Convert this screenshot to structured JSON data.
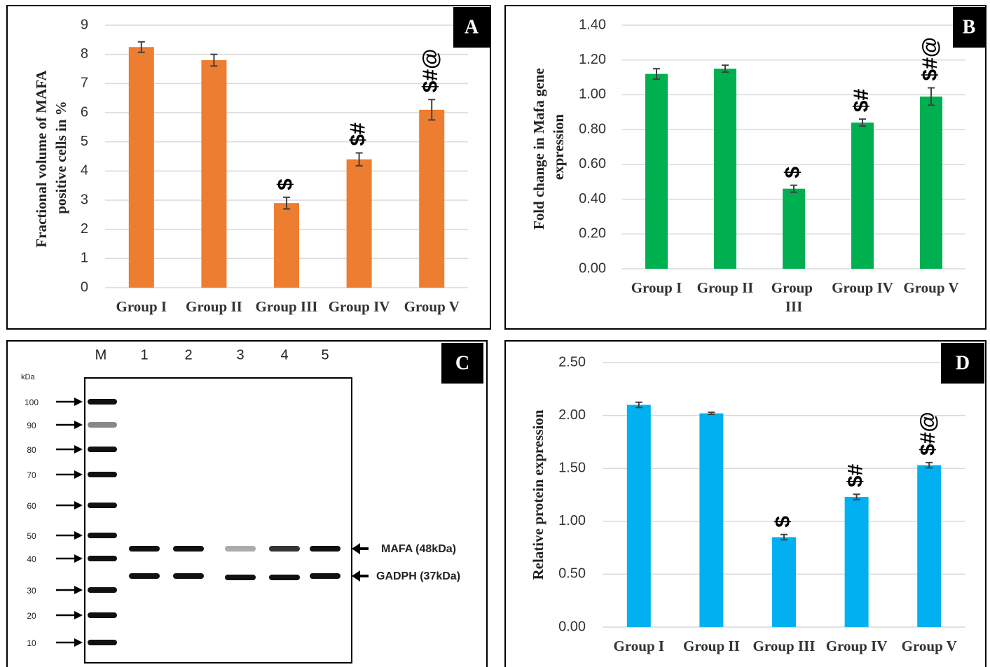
{
  "chart_data": [
    {
      "type": "bar",
      "panel": "A",
      "y_label": "Fractional volume of MAFA positive cells in %",
      "categories": [
        "Group I",
        "Group II",
        "Group III",
        "Group IV",
        "Group V"
      ],
      "series": [
        {
          "color": "#ed7d31",
          "values": [
            8.25,
            7.8,
            2.9,
            4.4,
            6.1
          ],
          "errors": [
            0.18,
            0.2,
            0.2,
            0.22,
            0.35
          ],
          "annotations": [
            null,
            null,
            "$",
            "$#",
            "$#@"
          ]
        }
      ],
      "ylim": [
        0,
        9
      ],
      "yticks": [
        0,
        1,
        2,
        3,
        4,
        5,
        6,
        7,
        8,
        9
      ],
      "grid": true
    },
    {
      "type": "bar",
      "panel": "B",
      "y_label": "Fold change in Mafa gene expression",
      "categories": [
        "Group I",
        "Group II",
        "Group III",
        "Group IV",
        "Group V"
      ],
      "series": [
        {
          "color": "#00b050",
          "values": [
            1.12,
            1.15,
            0.46,
            0.84,
            0.99
          ],
          "errors": [
            0.03,
            0.02,
            0.02,
            0.02,
            0.05
          ],
          "annotations": [
            null,
            null,
            "$",
            "$#",
            "$#@"
          ]
        }
      ],
      "ylim": [
        0,
        1.4
      ],
      "yticks": [
        {
          "value": 0,
          "label": "0.00"
        },
        {
          "value": 0.2,
          "label": "0.20"
        },
        {
          "value": 0.4,
          "label": "0.40"
        },
        {
          "value": 0.6,
          "label": "0.60"
        },
        {
          "value": 0.8,
          "label": "0.80"
        },
        {
          "value": 1,
          "label": "1.00"
        },
        {
          "value": 1.2,
          "label": "1.20"
        },
        {
          "value": 1.4,
          "label": "1.40"
        }
      ],
      "grid": true
    },
    {
      "type": "bar",
      "panel": "D",
      "y_label": "Relative protein expression",
      "categories": [
        "Group I",
        "Group II",
        "Group III",
        "Group IV",
        "Group V"
      ],
      "series": [
        {
          "color": "#00b0f0",
          "values": [
            2.1,
            2.02,
            0.85,
            1.23,
            1.53
          ],
          "errors": [
            0.025,
            0.01,
            0.025,
            0.025,
            0.025
          ],
          "annotations": [
            null,
            null,
            "$",
            "$#",
            "$#@"
          ]
        }
      ],
      "ylim": [
        0,
        2.5
      ],
      "yticks": [
        {
          "value": 0,
          "label": "0.00"
        },
        {
          "value": 0.5,
          "label": "0.50"
        },
        {
          "value": 1,
          "label": "1.00"
        },
        {
          "value": 1.5,
          "label": "1.50"
        },
        {
          "value": 2,
          "label": "2.00"
        },
        {
          "value": 2.5,
          "label": "2.50"
        }
      ],
      "grid": true
    }
  ],
  "blot": {
    "panel": "C",
    "lanes": [
      "M",
      "1",
      "2",
      "3",
      "4",
      "5"
    ],
    "unit": "kDa",
    "markers": [
      100,
      90,
      80,
      70,
      60,
      50,
      40,
      30,
      20,
      10
    ],
    "bands": [
      "MAFA (48kDa)",
      "GADPH (37kDa)"
    ]
  }
}
